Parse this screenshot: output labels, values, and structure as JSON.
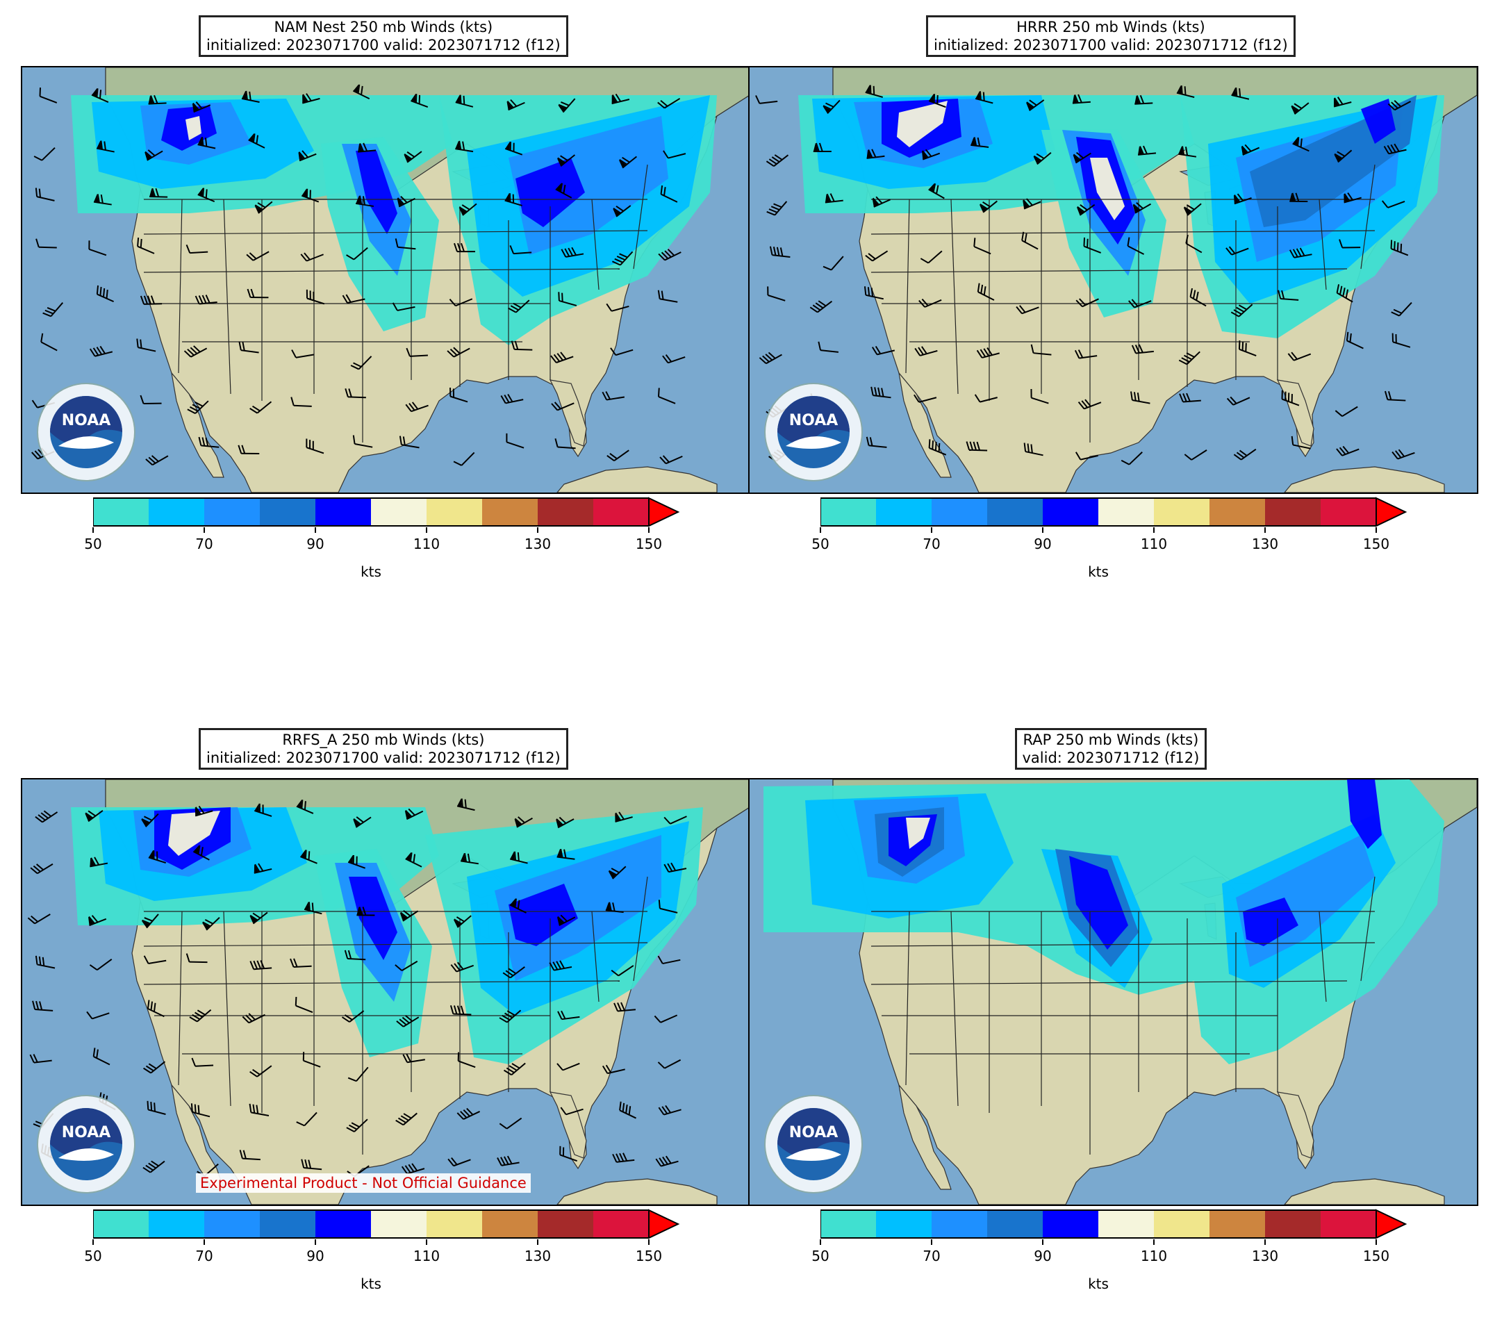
{
  "panels": [
    {
      "title_line1": "NAM Nest 250 mb Winds (kts)",
      "title_line2": "initialized: 2023071700 valid: 2023071712 (f12)",
      "logo_text": "NOAA",
      "has_barbs": true,
      "cbar_unit": "kts"
    },
    {
      "title_line1": "HRRR 250 mb Winds (kts)",
      "title_line2": "initialized: 2023071700 valid: 2023071712 (f12)",
      "logo_text": "NOAA",
      "has_barbs": true,
      "cbar_unit": "kts"
    },
    {
      "title_line1": "RRFS_A 250 mb Winds (kts)",
      "title_line2": "initialized: 2023071700 valid: 2023071712 (f12)",
      "logo_text": "NOAA",
      "has_barbs": true,
      "cbar_unit": "kts",
      "watermark": "Experimental Product - Not Official Guidance"
    },
    {
      "title_line1": "RAP 250 mb Winds (kts)",
      "title_line2": "valid: 2023071712 (f12)",
      "logo_text": "NOAA",
      "has_barbs": false,
      "cbar_unit": "kts"
    }
  ],
  "colorbar": {
    "bins": [
      50,
      60,
      70,
      80,
      90,
      100,
      110,
      120,
      130,
      140,
      150
    ],
    "colors": [
      "#40e0d0",
      "#00bfff",
      "#1e90ff",
      "#1874cd",
      "#0000ff",
      "#f5f5dc",
      "#f0e68c",
      "#cd853f",
      "#a52a2a",
      "#dc143c",
      "#ff0000"
    ],
    "tick_labels": [
      "50",
      "70",
      "90",
      "110",
      "130",
      "150"
    ],
    "extend": "max"
  },
  "map_colors": {
    "ocean": "#7aa9cf",
    "land": "#d9d6b0",
    "land_north": "#a9bd98",
    "state_lines": "#222222"
  }
}
